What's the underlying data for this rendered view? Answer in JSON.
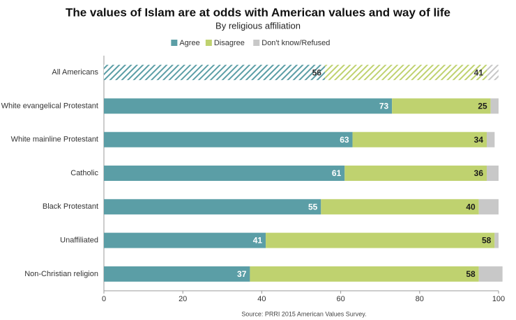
{
  "chart_data": {
    "type": "stacked-bar-horizontal",
    "title": "The values of Islam are at odds with American values and way of life",
    "subtitle": "By religious affiliation",
    "source": "Source: PRRI 2015 American Values Survey.",
    "categories": [
      "All Americans",
      "White evangelical Protestant",
      "White mainline Protestant",
      "Catholic",
      "Black Protestant",
      "Unaffiliated",
      "Non-Christian religion"
    ],
    "series": [
      {
        "name": "Agree",
        "color": "#5b9ea6",
        "label_color": "#ffffff",
        "show_labels": true,
        "values": [
          56,
          73,
          63,
          61,
          55,
          41,
          37
        ]
      },
      {
        "name": "Disagree",
        "color": "#bfd26f",
        "label_color": "#1a1a1a",
        "show_labels": true,
        "values": [
          41,
          25,
          34,
          36,
          40,
          58,
          58
        ]
      },
      {
        "name": "Don't know/Refused",
        "color": "#c8c8c8",
        "label_color": "#1a1a1a",
        "show_labels": false,
        "values": [
          3,
          2,
          2,
          3,
          5,
          1,
          6
        ]
      }
    ],
    "hatched_rows": [
      0
    ],
    "xlim": [
      0,
      100
    ],
    "xticks": [
      0,
      20,
      40,
      60,
      80,
      100
    ]
  }
}
